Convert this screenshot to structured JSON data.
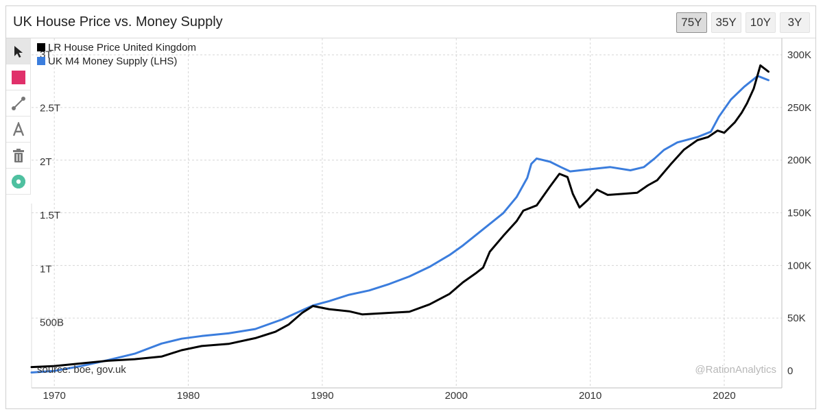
{
  "header": {
    "title": "UK House Price vs. Money Supply",
    "ranges": [
      {
        "label": "75Y",
        "active": true
      },
      {
        "label": "35Y",
        "active": false
      },
      {
        "label": "10Y",
        "active": false
      },
      {
        "label": "3Y",
        "active": false
      }
    ]
  },
  "toolbar": {
    "tools": [
      "cursor-icon",
      "color-square-icon",
      "line-tool-icon",
      "text-tool-icon",
      "trash-icon",
      "gear-icon"
    ],
    "accent_color": "#e0306a",
    "gear_color": "#4fc0a0"
  },
  "chart_data": {
    "type": "line",
    "source": "source: boe, gov.uk",
    "watermark": "@RationAnalytics",
    "x_ticks": [
      1970,
      1980,
      1990,
      2000,
      2010,
      2020
    ],
    "x_range": [
      1968.3,
      2024.3
    ],
    "left_axis": {
      "range": [
        0,
        3150000000000
      ],
      "ticks": [
        {
          "value": 500000000000,
          "label": "500B"
        },
        {
          "value": 1000000000000,
          "label": "1T"
        },
        {
          "value": 1500000000000,
          "label": "1.5T"
        },
        {
          "value": 2000000000000,
          "label": "2T"
        },
        {
          "value": 2500000000000,
          "label": "2.5T"
        },
        {
          "value": 3000000000000,
          "label": "3T"
        }
      ]
    },
    "right_axis": {
      "range": [
        0,
        300000
      ],
      "ticks": [
        {
          "value": 0,
          "label": "0"
        },
        {
          "value": 50000,
          "label": "50K"
        },
        {
          "value": 100000,
          "label": "100K"
        },
        {
          "value": 150000,
          "label": "150K"
        },
        {
          "value": 200000,
          "label": "200K"
        },
        {
          "value": 250000,
          "label": "250K"
        },
        {
          "value": 300000,
          "label": "300K"
        }
      ]
    },
    "series": [
      {
        "name": "LR House Price United Kingdom",
        "color": "#000000",
        "axis": "right",
        "points": [
          [
            1968.3,
            3500
          ],
          [
            1970,
            4500
          ],
          [
            1972,
            7000
          ],
          [
            1974,
            9500
          ],
          [
            1976,
            11000
          ],
          [
            1978,
            13500
          ],
          [
            1979.5,
            19500
          ],
          [
            1981,
            23500
          ],
          [
            1983,
            25500
          ],
          [
            1985,
            31000
          ],
          [
            1986.5,
            37000
          ],
          [
            1987.5,
            44000
          ],
          [
            1988.5,
            55000
          ],
          [
            1989.3,
            61500
          ],
          [
            1990.5,
            58500
          ],
          [
            1992,
            56500
          ],
          [
            1993,
            53500
          ],
          [
            1995,
            55000
          ],
          [
            1996.5,
            56000
          ],
          [
            1998,
            63000
          ],
          [
            1999.5,
            73000
          ],
          [
            2000.5,
            84000
          ],
          [
            2001.5,
            93000
          ],
          [
            2002,
            98000
          ],
          [
            2002.5,
            113000
          ],
          [
            2003.5,
            128000
          ],
          [
            2004.5,
            142000
          ],
          [
            2005,
            152000
          ],
          [
            2006,
            157000
          ],
          [
            2007,
            175000
          ],
          [
            2007.7,
            187000
          ],
          [
            2008.3,
            184000
          ],
          [
            2008.7,
            168000
          ],
          [
            2009.2,
            155000
          ],
          [
            2009.8,
            162000
          ],
          [
            2010.5,
            172000
          ],
          [
            2011.3,
            167000
          ],
          [
            2012.5,
            168000
          ],
          [
            2013.5,
            169000
          ],
          [
            2014.3,
            176000
          ],
          [
            2015,
            181000
          ],
          [
            2016,
            196000
          ],
          [
            2017,
            210000
          ],
          [
            2018,
            219000
          ],
          [
            2018.8,
            222000
          ],
          [
            2019.5,
            228000
          ],
          [
            2020,
            226000
          ],
          [
            2020.8,
            236000
          ],
          [
            2021.3,
            245000
          ],
          [
            2021.7,
            254000
          ],
          [
            2022.2,
            268000
          ],
          [
            2022.7,
            290000
          ],
          [
            2023.3,
            284000
          ]
        ]
      },
      {
        "name": "UK M4 Money Supply (LHS)",
        "color": "#3b7ddd",
        "axis": "left",
        "points": [
          [
            1968.3,
            35000000000
          ],
          [
            1970,
            50000000000
          ],
          [
            1972,
            95000000000
          ],
          [
            1974,
            150000000000
          ],
          [
            1976,
            210000000000
          ],
          [
            1978,
            305000000000
          ],
          [
            1979.5,
            350000000000
          ],
          [
            1981,
            375000000000
          ],
          [
            1983,
            400000000000
          ],
          [
            1985,
            440000000000
          ],
          [
            1987,
            530000000000
          ],
          [
            1988.5,
            615000000000
          ],
          [
            1989.3,
            660000000000
          ],
          [
            1990.5,
            700000000000
          ],
          [
            1992,
            760000000000
          ],
          [
            1993.5,
            800000000000
          ],
          [
            1995,
            860000000000
          ],
          [
            1996.5,
            930000000000
          ],
          [
            1998,
            1020000000000
          ],
          [
            1999.5,
            1130000000000
          ],
          [
            2000.5,
            1220000000000
          ],
          [
            2002,
            1370000000000
          ],
          [
            2003.5,
            1520000000000
          ],
          [
            2004.5,
            1670000000000
          ],
          [
            2005.3,
            1850000000000
          ],
          [
            2005.6,
            1980000000000
          ],
          [
            2006,
            2030000000000
          ],
          [
            2007,
            2000000000000
          ],
          [
            2007.8,
            1950000000000
          ],
          [
            2008.5,
            1910000000000
          ],
          [
            2010,
            1930000000000
          ],
          [
            2011.5,
            1950000000000
          ],
          [
            2013,
            1920000000000
          ],
          [
            2014,
            1950000000000
          ],
          [
            2014.8,
            2030000000000
          ],
          [
            2015.5,
            2110000000000
          ],
          [
            2016.5,
            2180000000000
          ],
          [
            2018,
            2230000000000
          ],
          [
            2019,
            2280000000000
          ],
          [
            2019.6,
            2420000000000
          ],
          [
            2020.5,
            2580000000000
          ],
          [
            2021.5,
            2700000000000
          ],
          [
            2022.5,
            2800000000000
          ],
          [
            2023.3,
            2760000000000
          ]
        ]
      }
    ]
  }
}
